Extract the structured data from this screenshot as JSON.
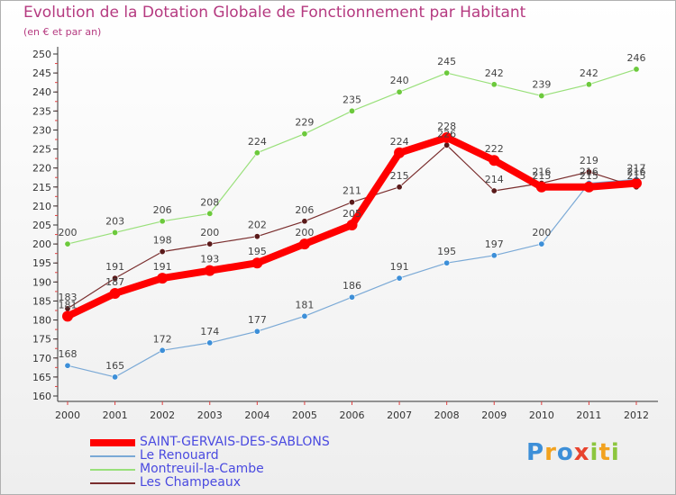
{
  "title": "Evolution de la Dotation Globale de Fonctionnement par Habitant",
  "subtitle": "(en € et par an)",
  "logo": {
    "text": "Proxiti",
    "colors": [
      "#3d8fd8",
      "#f2a21f",
      "#8cc63e",
      "#e8432e"
    ]
  },
  "chart_data": {
    "type": "line",
    "title": "Evolution de la Dotation Globale de Fonctionnement par Habitant",
    "subtitle": "(en € et par an)",
    "xlabel": "",
    "ylabel": "",
    "x": [
      "2000",
      "2001",
      "2002",
      "2003",
      "2004",
      "2005",
      "2006",
      "2007",
      "2008",
      "2009",
      "2010",
      "2011",
      "2012"
    ],
    "ylim": [
      160,
      250
    ],
    "yticks": [
      160,
      165,
      170,
      175,
      180,
      185,
      190,
      195,
      200,
      205,
      210,
      215,
      220,
      225,
      230,
      235,
      240,
      245,
      250
    ],
    "grid": false,
    "legend_position": "bottom-left",
    "series": [
      {
        "name": "SAINT-GERVAIS-DES-SABLONS",
        "color": "#ff0000",
        "values": [
          181,
          187,
          191,
          193,
          195,
          200,
          205,
          224,
          228,
          222,
          215,
          215,
          216
        ]
      },
      {
        "name": "Le Renouard",
        "color": "#7aa9d6",
        "values": [
          168,
          165,
          172,
          174,
          177,
          181,
          186,
          191,
          195,
          197,
          200,
          216,
          217
        ]
      },
      {
        "name": "Montreuil-la-Cambe",
        "color": "#99e07a",
        "values": [
          200,
          203,
          206,
          208,
          224,
          229,
          235,
          240,
          245,
          242,
          239,
          242,
          246
        ]
      },
      {
        "name": "Les Champeaux",
        "color": "#7a2e2e",
        "values": [
          183,
          191,
          198,
          200,
          202,
          206,
          211,
          215,
          226,
          214,
          216,
          219,
          215
        ]
      }
    ],
    "data_labels": [
      [
        "181",
        "187",
        "191",
        "193",
        "195",
        "200",
        "205",
        "224",
        "228",
        "222",
        "215",
        "215",
        "216"
      ],
      [
        "168",
        "165",
        "172",
        "174",
        "177",
        "181",
        "186",
        "191",
        "195",
        "197",
        "200",
        "216",
        "217"
      ],
      [
        "200",
        "203",
        "206",
        "208",
        "224",
        "229",
        "235",
        "240",
        "245",
        "242",
        "239",
        "242",
        "246"
      ],
      [
        "183",
        "191",
        "198",
        "200",
        "202",
        "206",
        "211",
        "215",
        "226",
        "214",
        "216",
        "219",
        "215"
      ]
    ]
  }
}
